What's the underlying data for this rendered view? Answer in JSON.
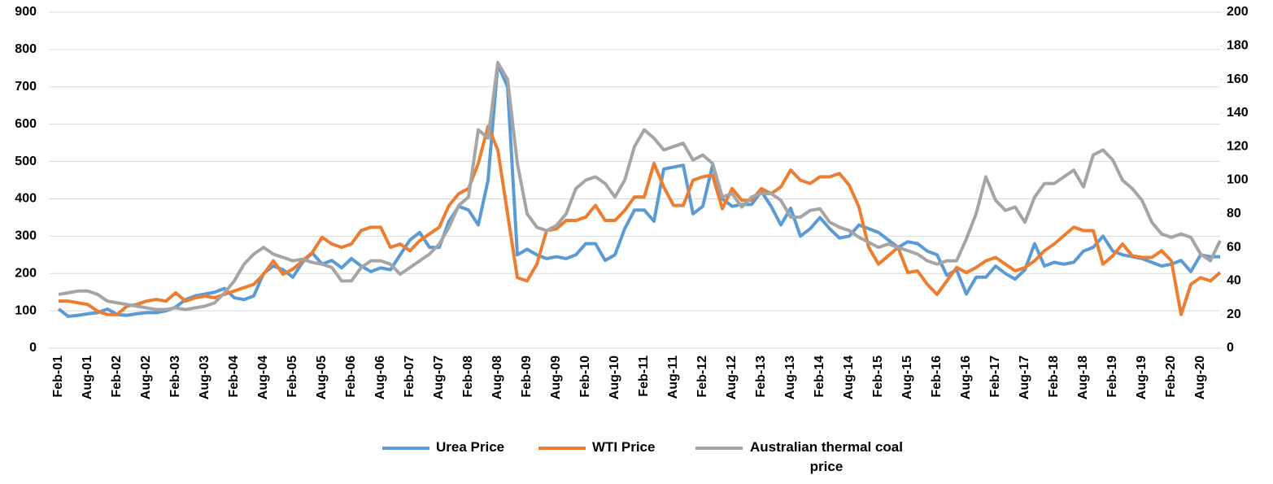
{
  "chart_data": {
    "type": "line",
    "categories": [
      "Feb-01",
      null,
      null,
      "Aug-01",
      null,
      null,
      "Feb-02",
      null,
      null,
      "Aug-02",
      null,
      null,
      "Feb-03",
      null,
      null,
      "Aug-03",
      null,
      null,
      "Feb-04",
      null,
      null,
      "Aug-04",
      null,
      null,
      "Feb-05",
      null,
      null,
      "Aug-05",
      null,
      null,
      "Feb-06",
      null,
      null,
      "Aug-06",
      null,
      null,
      "Feb-07",
      null,
      null,
      "Aug-07",
      null,
      null,
      "Feb-08",
      null,
      null,
      "Aug-08",
      null,
      null,
      "Feb-09",
      null,
      null,
      "Aug-09",
      null,
      null,
      "Feb-10",
      null,
      null,
      "Aug-10",
      null,
      null,
      "Feb-11",
      null,
      null,
      "Aug-11",
      null,
      null,
      "Feb-12",
      null,
      null,
      "Aug-12",
      null,
      null,
      "Feb-13",
      null,
      null,
      "Aug-13",
      null,
      null,
      "Feb-14",
      null,
      null,
      "Aug-14",
      null,
      null,
      "Feb-15",
      null,
      null,
      "Aug-15",
      null,
      null,
      "Feb-16",
      null,
      null,
      "Aug-16",
      null,
      null,
      "Feb-17",
      null,
      null,
      "Aug-17",
      null,
      null,
      "Feb-18",
      null,
      null,
      "Aug-18",
      null,
      null,
      "Feb-19",
      null,
      null,
      "Aug-19",
      null,
      null,
      "Feb-20",
      null,
      null,
      "Aug-20",
      null,
      null
    ],
    "series": [
      {
        "name": "Urea Price",
        "color": "#5b9bd5",
        "values": [
          105,
          85,
          88,
          92,
          95,
          105,
          90,
          88,
          92,
          95,
          95,
          100,
          110,
          130,
          140,
          145,
          150,
          160,
          135,
          130,
          140,
          200,
          220,
          210,
          190,
          230,
          255,
          225,
          235,
          215,
          240,
          220,
          205,
          215,
          210,
          250,
          290,
          310,
          270,
          270,
          340,
          380,
          370,
          330,
          450,
          760,
          700,
          250,
          265,
          250,
          240,
          245,
          240,
          250,
          280,
          280,
          235,
          250,
          320,
          370,
          370,
          340,
          480,
          485,
          490,
          360,
          380,
          490,
          400,
          380,
          385,
          385,
          420,
          380,
          330,
          375,
          300,
          320,
          350,
          320,
          295,
          300,
          330,
          320,
          310,
          290,
          270,
          285,
          280,
          260,
          250,
          195,
          210,
          145,
          190,
          190,
          220,
          200,
          185,
          210,
          280,
          220,
          230,
          225,
          230,
          260,
          270,
          300,
          260,
          250,
          245,
          240,
          230,
          220,
          225,
          235,
          205,
          250,
          245,
          245
        ]
      },
      {
        "name": "WTI Price",
        "color": "#ed7d31",
        "axis": "y2",
        "values": [
          28,
          28,
          27,
          26,
          22,
          20,
          20,
          25,
          26,
          28,
          29,
          28,
          33,
          28,
          30,
          31,
          30,
          32,
          34,
          36,
          38,
          44,
          52,
          44,
          47,
          52,
          57,
          66,
          62,
          60,
          62,
          70,
          72,
          72,
          60,
          62,
          58,
          64,
          68,
          72,
          85,
          92,
          95,
          110,
          132,
          118,
          80,
          42,
          40,
          50,
          70,
          71,
          76,
          76,
          78,
          85,
          76,
          76,
          82,
          90,
          90,
          110,
          96,
          85,
          85,
          100,
          102,
          103,
          83,
          95,
          88,
          88,
          95,
          92,
          96,
          106,
          100,
          98,
          102,
          102,
          104,
          97,
          84,
          60,
          50,
          55,
          60,
          45,
          46,
          38,
          32,
          40,
          48,
          45,
          48,
          52,
          54,
          50,
          46,
          48,
          52,
          58,
          62,
          67,
          72,
          70,
          70,
          50,
          55,
          62,
          55,
          54,
          54,
          58,
          52,
          20,
          38,
          42,
          40,
          45
        ]
      },
      {
        "name": "Australian thermal coal price",
        "color": "#a5a5a5",
        "axis": "y2",
        "values": [
          32,
          33,
          34,
          34,
          32,
          28,
          27,
          26,
          25,
          24,
          23,
          23,
          24,
          23,
          24,
          25,
          27,
          33,
          40,
          50,
          56,
          60,
          56,
          54,
          52,
          53,
          51,
          50,
          48,
          40,
          40,
          48,
          52,
          52,
          50,
          44,
          48,
          52,
          56,
          62,
          72,
          85,
          90,
          130,
          125,
          170,
          160,
          110,
          80,
          72,
          70,
          73,
          80,
          95,
          100,
          102,
          98,
          90,
          100,
          120,
          130,
          125,
          118,
          120,
          122,
          112,
          115,
          110,
          90,
          92,
          84,
          90,
          92,
          92,
          88,
          78,
          78,
          82,
          83,
          75,
          72,
          70,
          66,
          63,
          60,
          62,
          60,
          58,
          56,
          52,
          50,
          52,
          52,
          65,
          80,
          102,
          88,
          82,
          84,
          75,
          90,
          98,
          98,
          102,
          106,
          96,
          115,
          118,
          112,
          100,
          95,
          88,
          75,
          68,
          66,
          68,
          66,
          56,
          52,
          64
        ]
      }
    ],
    "ylim": [
      0,
      900
    ],
    "yticks": [
      0,
      100,
      200,
      300,
      400,
      500,
      600,
      700,
      800,
      900
    ],
    "y2lim": [
      0,
      200
    ],
    "y2ticks": [
      0,
      20,
      40,
      60,
      80,
      100,
      120,
      140,
      160,
      180,
      200
    ],
    "grid": true,
    "legend": "bottom"
  }
}
